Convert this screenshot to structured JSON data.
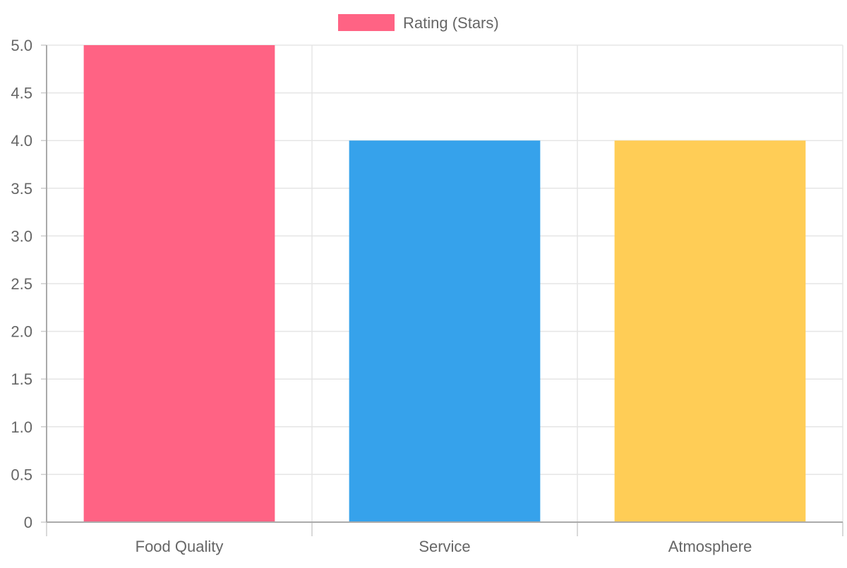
{
  "chart_data": {
    "type": "bar",
    "categories": [
      "Food Quality",
      "Service",
      "Atmosphere"
    ],
    "series": [
      {
        "name": "Rating (Stars)",
        "values": [
          5,
          4,
          4
        ],
        "colors": [
          "#ff6384",
          "#36a2eb",
          "#ffcd56"
        ]
      }
    ],
    "legend": {
      "position": "top-center",
      "label": "Rating (Stars)",
      "color": "#ff6384"
    },
    "ylim": [
      0,
      5
    ],
    "yticks": [
      "0",
      "0.5",
      "1.0",
      "1.5",
      "2.0",
      "2.5",
      "3.0",
      "3.5",
      "4.0",
      "4.5",
      "5.0"
    ],
    "grid": true
  }
}
